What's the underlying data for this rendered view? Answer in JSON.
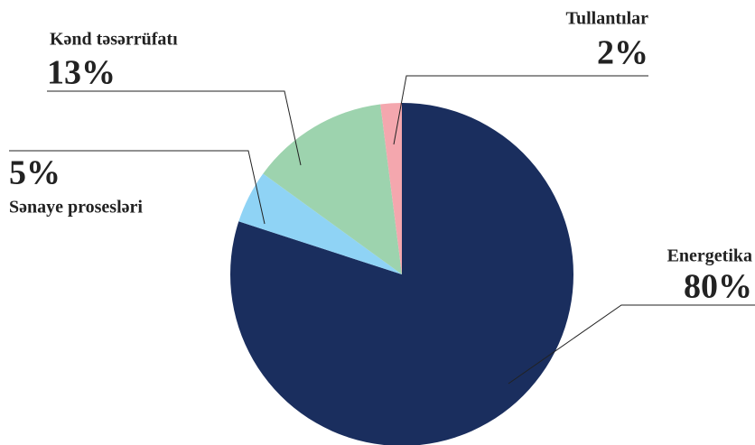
{
  "chart_data": {
    "type": "pie",
    "categories": [
      "Energetika",
      "Sənaye prosesləri",
      "Kənd təsərrüfatı",
      "Tullantılar"
    ],
    "values": [
      80,
      5,
      13,
      2
    ],
    "value_labels": [
      "80%",
      "5%",
      "13%",
      "2%"
    ],
    "colors": [
      "#1a2e5e",
      "#8fd3f5",
      "#9dd3ae",
      "#f4a7ae"
    ]
  }
}
